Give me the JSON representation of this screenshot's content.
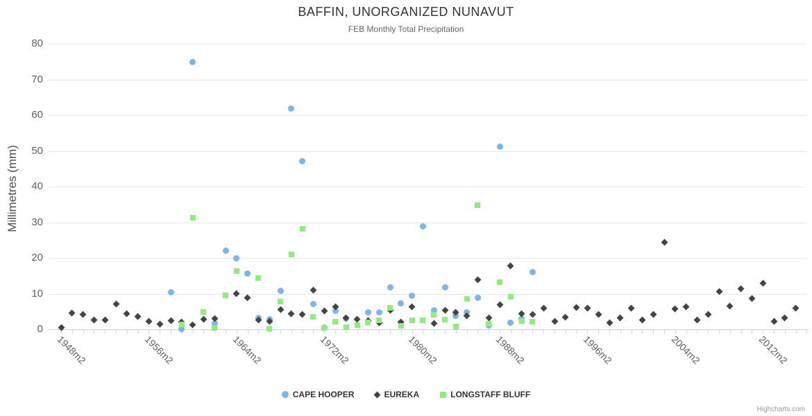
{
  "chart_data": {
    "type": "scatter",
    "title": "BAFFIN, UNORGANIZED NUNAVUT",
    "subtitle": "FEB Monthly Total Precipitation",
    "ylabel": "Millimetres (mm)",
    "ylim": [
      0,
      80
    ],
    "ytick_step": 10,
    "ytick_labels": [
      "0",
      "10",
      "20",
      "30",
      "40",
      "50",
      "60",
      "70",
      "80"
    ],
    "xlim": [
      1948,
      2016
    ],
    "xtick_label_years": [
      1948,
      1956,
      1964,
      1972,
      1980,
      1988,
      1996,
      2004,
      2012
    ],
    "xtick_labels": [
      "1948m2",
      "1956m2",
      "1964m2",
      "1972m2",
      "1980m2",
      "1988m2",
      "1996m2",
      "2004m2",
      "2012m2"
    ],
    "grid": "horizontal",
    "legend_position": "bottom-center",
    "series": [
      {
        "name": "CAPE HOOPER",
        "marker": "circle",
        "color": "#7cb5ec",
        "points": [
          [
            1958,
            10.4
          ],
          [
            1959,
            0.1
          ],
          [
            1960,
            74.8
          ],
          [
            1962,
            1.7
          ],
          [
            1963,
            22
          ],
          [
            1964,
            19.9
          ],
          [
            1965,
            15.7
          ],
          [
            1966,
            3.3
          ],
          [
            1967,
            2.9
          ],
          [
            1968,
            10.8
          ],
          [
            1969,
            61.8
          ],
          [
            1970,
            47
          ],
          [
            1971,
            7
          ],
          [
            1972,
            0.4
          ],
          [
            1973,
            5.1
          ],
          [
            1974,
            3
          ],
          [
            1976,
            4.7
          ],
          [
            1977,
            4.7
          ],
          [
            1978,
            11.7
          ],
          [
            1979,
            7.2
          ],
          [
            1980,
            9.5
          ],
          [
            1981,
            28.8
          ],
          [
            1982,
            5.3
          ],
          [
            1983,
            11.8
          ],
          [
            1984,
            3.8
          ],
          [
            1985,
            4.8
          ],
          [
            1986,
            8.8
          ],
          [
            1987,
            1.1
          ],
          [
            1988,
            51.2
          ],
          [
            1989,
            1.8
          ],
          [
            1990,
            3
          ],
          [
            1991,
            16
          ]
        ]
      },
      {
        "name": "EUREKA",
        "marker": "diamond",
        "color": "#434348",
        "points": [
          [
            1948,
            0.5
          ],
          [
            1949,
            4.6
          ],
          [
            1950,
            4.1
          ],
          [
            1951,
            2.6
          ],
          [
            1952,
            2.7
          ],
          [
            1953,
            7
          ],
          [
            1954,
            4.4
          ],
          [
            1955,
            3.5
          ],
          [
            1956,
            2.3
          ],
          [
            1957,
            1.5
          ],
          [
            1958,
            2.4
          ],
          [
            1959,
            2.1
          ],
          [
            1960,
            1.2
          ],
          [
            1961,
            2.9
          ],
          [
            1962,
            3.1
          ],
          [
            1964,
            10
          ],
          [
            1965,
            8.8
          ],
          [
            1966,
            2.6
          ],
          [
            1967,
            2.2
          ],
          [
            1968,
            5.6
          ],
          [
            1969,
            4.3
          ],
          [
            1970,
            4.1
          ],
          [
            1971,
            11
          ],
          [
            1972,
            5.2
          ],
          [
            1973,
            6.4
          ],
          [
            1974,
            3.2
          ],
          [
            1975,
            2.9
          ],
          [
            1976,
            2.5
          ],
          [
            1977,
            1.9
          ],
          [
            1978,
            5.4
          ],
          [
            1979,
            2.1
          ],
          [
            1980,
            6.4
          ],
          [
            1982,
            1.6
          ],
          [
            1983,
            5.3
          ],
          [
            1984,
            4.8
          ],
          [
            1985,
            3.7
          ],
          [
            1986,
            13.8
          ],
          [
            1987,
            3.3
          ],
          [
            1988,
            6.9
          ],
          [
            1989,
            17.7
          ],
          [
            1990,
            4.4
          ],
          [
            1991,
            4.1
          ],
          [
            1992,
            6
          ],
          [
            1993,
            2.3
          ],
          [
            1994,
            3.4
          ],
          [
            1995,
            6.2
          ],
          [
            1996,
            5.9
          ],
          [
            1997,
            4.1
          ],
          [
            1998,
            1.9
          ],
          [
            1999,
            3.3
          ],
          [
            2000,
            6
          ],
          [
            2001,
            2.7
          ],
          [
            2002,
            4.1
          ],
          [
            2003,
            24.4
          ],
          [
            2004,
            5.8
          ],
          [
            2005,
            6.4
          ],
          [
            2006,
            2.6
          ],
          [
            2007,
            4.1
          ],
          [
            2008,
            10.5
          ],
          [
            2009,
            6.5
          ],
          [
            2010,
            11.3
          ],
          [
            2011,
            8.7
          ],
          [
            2012,
            12.9
          ],
          [
            2013,
            2.2
          ],
          [
            2014,
            3.3
          ],
          [
            2015,
            6
          ]
        ]
      },
      {
        "name": "LONGSTAFF BLUFF",
        "marker": "square",
        "color": "#90ed7d",
        "points": [
          [
            1959,
            1.3
          ],
          [
            1960,
            31.2
          ],
          [
            1961,
            4.9
          ],
          [
            1962,
            0.3
          ],
          [
            1963,
            9.6
          ],
          [
            1964,
            16.3
          ],
          [
            1966,
            14.4
          ],
          [
            1967,
            0.2
          ],
          [
            1968,
            7.7
          ],
          [
            1969,
            21
          ],
          [
            1970,
            28.2
          ],
          [
            1971,
            3.5
          ],
          [
            1972,
            0.3
          ],
          [
            1973,
            2.2
          ],
          [
            1974,
            0.6
          ],
          [
            1975,
            1.1
          ],
          [
            1976,
            1.9
          ],
          [
            1977,
            2.6
          ],
          [
            1978,
            6.1
          ],
          [
            1979,
            1
          ],
          [
            1980,
            2.5
          ],
          [
            1981,
            2.5
          ],
          [
            1982,
            4.1
          ],
          [
            1983,
            2.7
          ],
          [
            1984,
            0.7
          ],
          [
            1985,
            8.6
          ],
          [
            1986,
            34.7
          ],
          [
            1987,
            1.6
          ],
          [
            1988,
            13.3
          ],
          [
            1989,
            9.2
          ],
          [
            1990,
            2.3
          ],
          [
            1991,
            2.1
          ]
        ]
      }
    ]
  },
  "credits": {
    "label": "Highcharts.com"
  }
}
